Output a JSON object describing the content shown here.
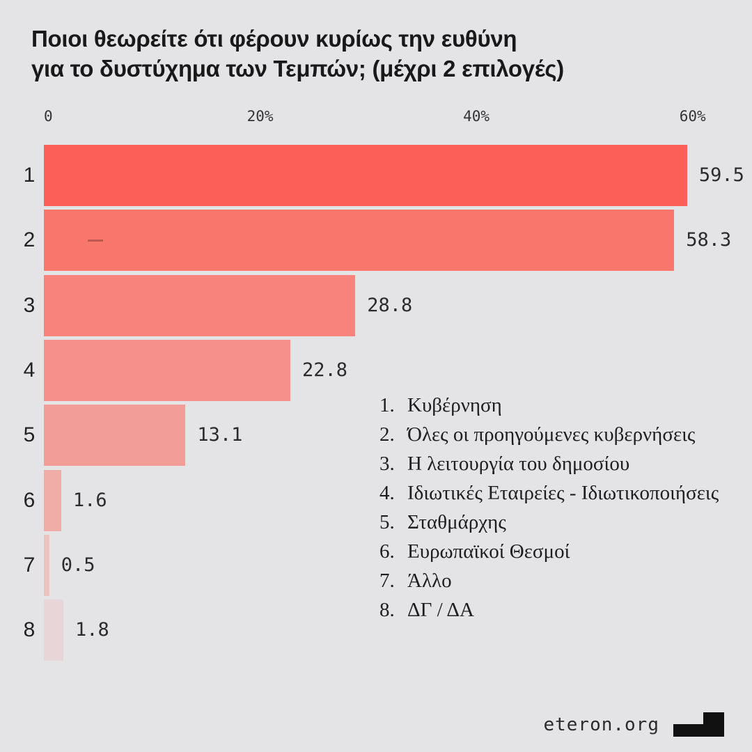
{
  "page": {
    "background": "#E4E4E6"
  },
  "title": {
    "line1": "Ποιοι θεωρείτε ότι φέρουν κυρίως την ευθύνη",
    "line2": "για το δυστύχημα των Τεμπών; (μέχρι 2 επιλογές)"
  },
  "chart_data": {
    "type": "bar",
    "orientation": "horizontal",
    "title": "Ποιοι θεωρείτε ότι φέρουν κυρίως την ευθύνη για το δυστύχημα των Τεμπών; (μέχρι 2 επιλογές)",
    "xlabel": "",
    "ylabel": "",
    "xlim": [
      0,
      60
    ],
    "grid": false,
    "x_ticks": [
      {
        "value": 0,
        "label": "0"
      },
      {
        "value": 20,
        "label": "20%"
      },
      {
        "value": 40,
        "label": "40%"
      },
      {
        "value": 60,
        "label": "60%"
      }
    ],
    "categories": [
      "1",
      "2",
      "3",
      "4",
      "5",
      "6",
      "7",
      "8"
    ],
    "values": [
      59.5,
      58.3,
      28.8,
      22.8,
      13.1,
      1.6,
      0.5,
      1.8
    ],
    "value_labels": [
      "59.5",
      "58.3",
      "28.8",
      "22.8",
      "13.1",
      "1.6",
      "0.5",
      "1.8"
    ],
    "bar_colors": [
      "#FB5F57",
      "#F9766D",
      "#F7837C",
      "#F5908A",
      "#F29D97",
      "#F0ACA7",
      "#EDC3C1",
      "#E8D5D7"
    ],
    "legend_position": "inside-right",
    "legend": [
      {
        "num": "1.",
        "label": "Κυβέρνηση"
      },
      {
        "num": "2.",
        "label": "Όλες οι προηγούμενες κυβερνήσεις"
      },
      {
        "num": "3.",
        "label": "Η λειτουργία του δημοσίου"
      },
      {
        "num": "4.",
        "label": "Ιδιωτικές Εταιρείες - Ιδιωτικοποιήσεις"
      },
      {
        "num": "5.",
        "label": "Σταθμάρχης"
      },
      {
        "num": "6.",
        "label": "Ευρωπαϊκοί Θεσμοί"
      },
      {
        "num": "7.",
        "label": "Άλλο"
      },
      {
        "num": "8.",
        "label": "ΔΓ / ΔΑ"
      }
    ]
  },
  "footer": {
    "source_label": "eteron.org",
    "logo_icon": "step-blocks-logo",
    "logo_color": "#111111"
  },
  "colors": {
    "background": "#E4E4E6",
    "title_text": "#191919",
    "tick_text": "#333333",
    "value_text": "#2b2b2b",
    "legend_text": "#1e1e1e",
    "accent": "#FB5F57"
  }
}
